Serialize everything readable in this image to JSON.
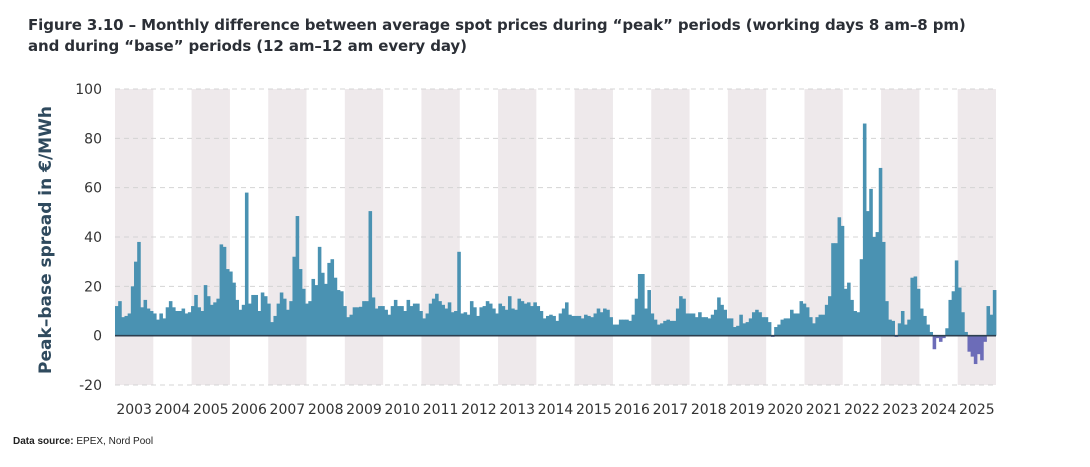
{
  "title_line1": "Figure 3.10 – Monthly difference between average spot prices during “peak” periods (working days 8 am–8 pm)",
  "title_line2": "and during “base” periods (12 am–12 am every day)",
  "source_label": "Data source:",
  "source_text": " EPEX, Nord Pool",
  "colors": {
    "positive": "#4a92b2",
    "negative": "#6c6cb8",
    "band": "#eee9eb",
    "zero_line": "#2d4050",
    "grid": "#d4d4d4"
  },
  "chart_data": {
    "type": "bar",
    "title": "Figure 3.10 – Monthly difference between average spot prices during “peak” periods (working days 8 am–8 pm) and during “base” periods (12 am–12 am every day)",
    "xlabel": "",
    "ylabel": "Peak–base spread in €/MWh",
    "ylim": [
      -20,
      100
    ],
    "yticks": [
      100,
      80,
      60,
      40,
      20,
      0,
      -20
    ],
    "x_tick_labels": [
      "2003",
      "2004",
      "2005",
      "2006",
      "2007",
      "2008",
      "2009",
      "2010",
      "2011",
      "2012",
      "2013",
      "2014",
      "2015",
      "2016",
      "2017",
      "2018",
      "2019",
      "2020",
      "2021",
      "2022",
      "2023",
      "2024",
      "2025"
    ],
    "grid": true,
    "alternating_year_shading": true,
    "frequency": "monthly",
    "values": [
      12,
      14,
      7.5,
      8,
      9,
      20,
      30,
      38,
      11.5,
      14.5,
      11,
      10,
      9,
      6.5,
      9,
      7,
      11.5,
      14,
      11.5,
      10,
      10,
      11,
      9,
      9.5,
      12,
      16.5,
      11.5,
      10,
      20.5,
      16,
      12.5,
      13.5,
      15,
      37,
      36,
      27,
      26,
      21.5,
      14.5,
      10.5,
      12.5,
      58,
      13,
      16.5,
      16.5,
      10,
      17.5,
      16,
      13,
      5.5,
      8,
      13,
      17.5,
      15,
      10.5,
      14,
      32,
      48.5,
      27,
      19,
      13,
      14,
      23,
      20.5,
      36,
      25.5,
      21,
      29.5,
      31,
      23.5,
      18.5,
      18,
      12,
      7.5,
      8.5,
      11.5,
      11.5,
      11.7,
      14,
      14,
      50.5,
      15.5,
      11,
      12,
      12,
      10.5,
      8.5,
      12,
      14.5,
      12,
      12,
      10,
      14.5,
      12,
      13,
      13,
      10,
      7,
      9,
      13,
      15,
      17,
      14,
      12.5,
      11,
      13.5,
      9.5,
      10,
      34,
      9,
      9.5,
      8.5,
      14,
      11.5,
      8,
      11.5,
      12,
      14,
      13,
      11,
      9,
      13,
      12,
      10.5,
      16,
      11,
      10.5,
      15,
      14,
      13,
      13.5,
      12,
      13.5,
      12,
      10,
      7,
      8,
      8.5,
      8,
      6,
      9,
      11,
      13.5,
      8.5,
      8,
      8,
      8,
      7,
      8.5,
      8,
      7.5,
      9,
      11,
      9.5,
      11,
      10.5,
      7.5,
      4.5,
      4.5,
      6.5,
      6.5,
      6.5,
      6,
      8.5,
      15,
      25,
      25,
      11,
      18.5,
      9,
      6.5,
      4.5,
      5,
      6,
      6.5,
      6,
      6,
      11,
      16,
      15,
      9,
      9,
      9,
      7.5,
      9.5,
      7.5,
      7.5,
      7,
      8.5,
      10.5,
      15.5,
      12.5,
      10.5,
      7,
      7,
      3.5,
      4,
      8.5,
      5,
      5.5,
      7,
      9.5,
      10.5,
      9.5,
      7.5,
      7.5,
      5.5,
      -0.5,
      3.5,
      4.5,
      6.5,
      7,
      7,
      10.5,
      9,
      9,
      14,
      13,
      11.5,
      7.5,
      5,
      7.5,
      8.5,
      8.5,
      12.5,
      16,
      37.5,
      37.5,
      48,
      44.5,
      19,
      21.5,
      14.5,
      10,
      9.5,
      31,
      86,
      50.5,
      59.5,
      40,
      42,
      68,
      38,
      14,
      6.5,
      6,
      -0.5,
      5,
      10,
      4.5,
      6.5,
      23.5,
      24,
      19,
      11,
      8,
      4.5,
      1.5,
      -5.5,
      -1,
      -2.5,
      -1,
      3,
      14.5,
      18,
      30.5,
      19.5,
      9.5,
      1.5,
      -6.5,
      -8.5,
      -11.5,
      -7.5,
      -10,
      -2.5,
      12,
      8.5,
      18.5
    ]
  }
}
